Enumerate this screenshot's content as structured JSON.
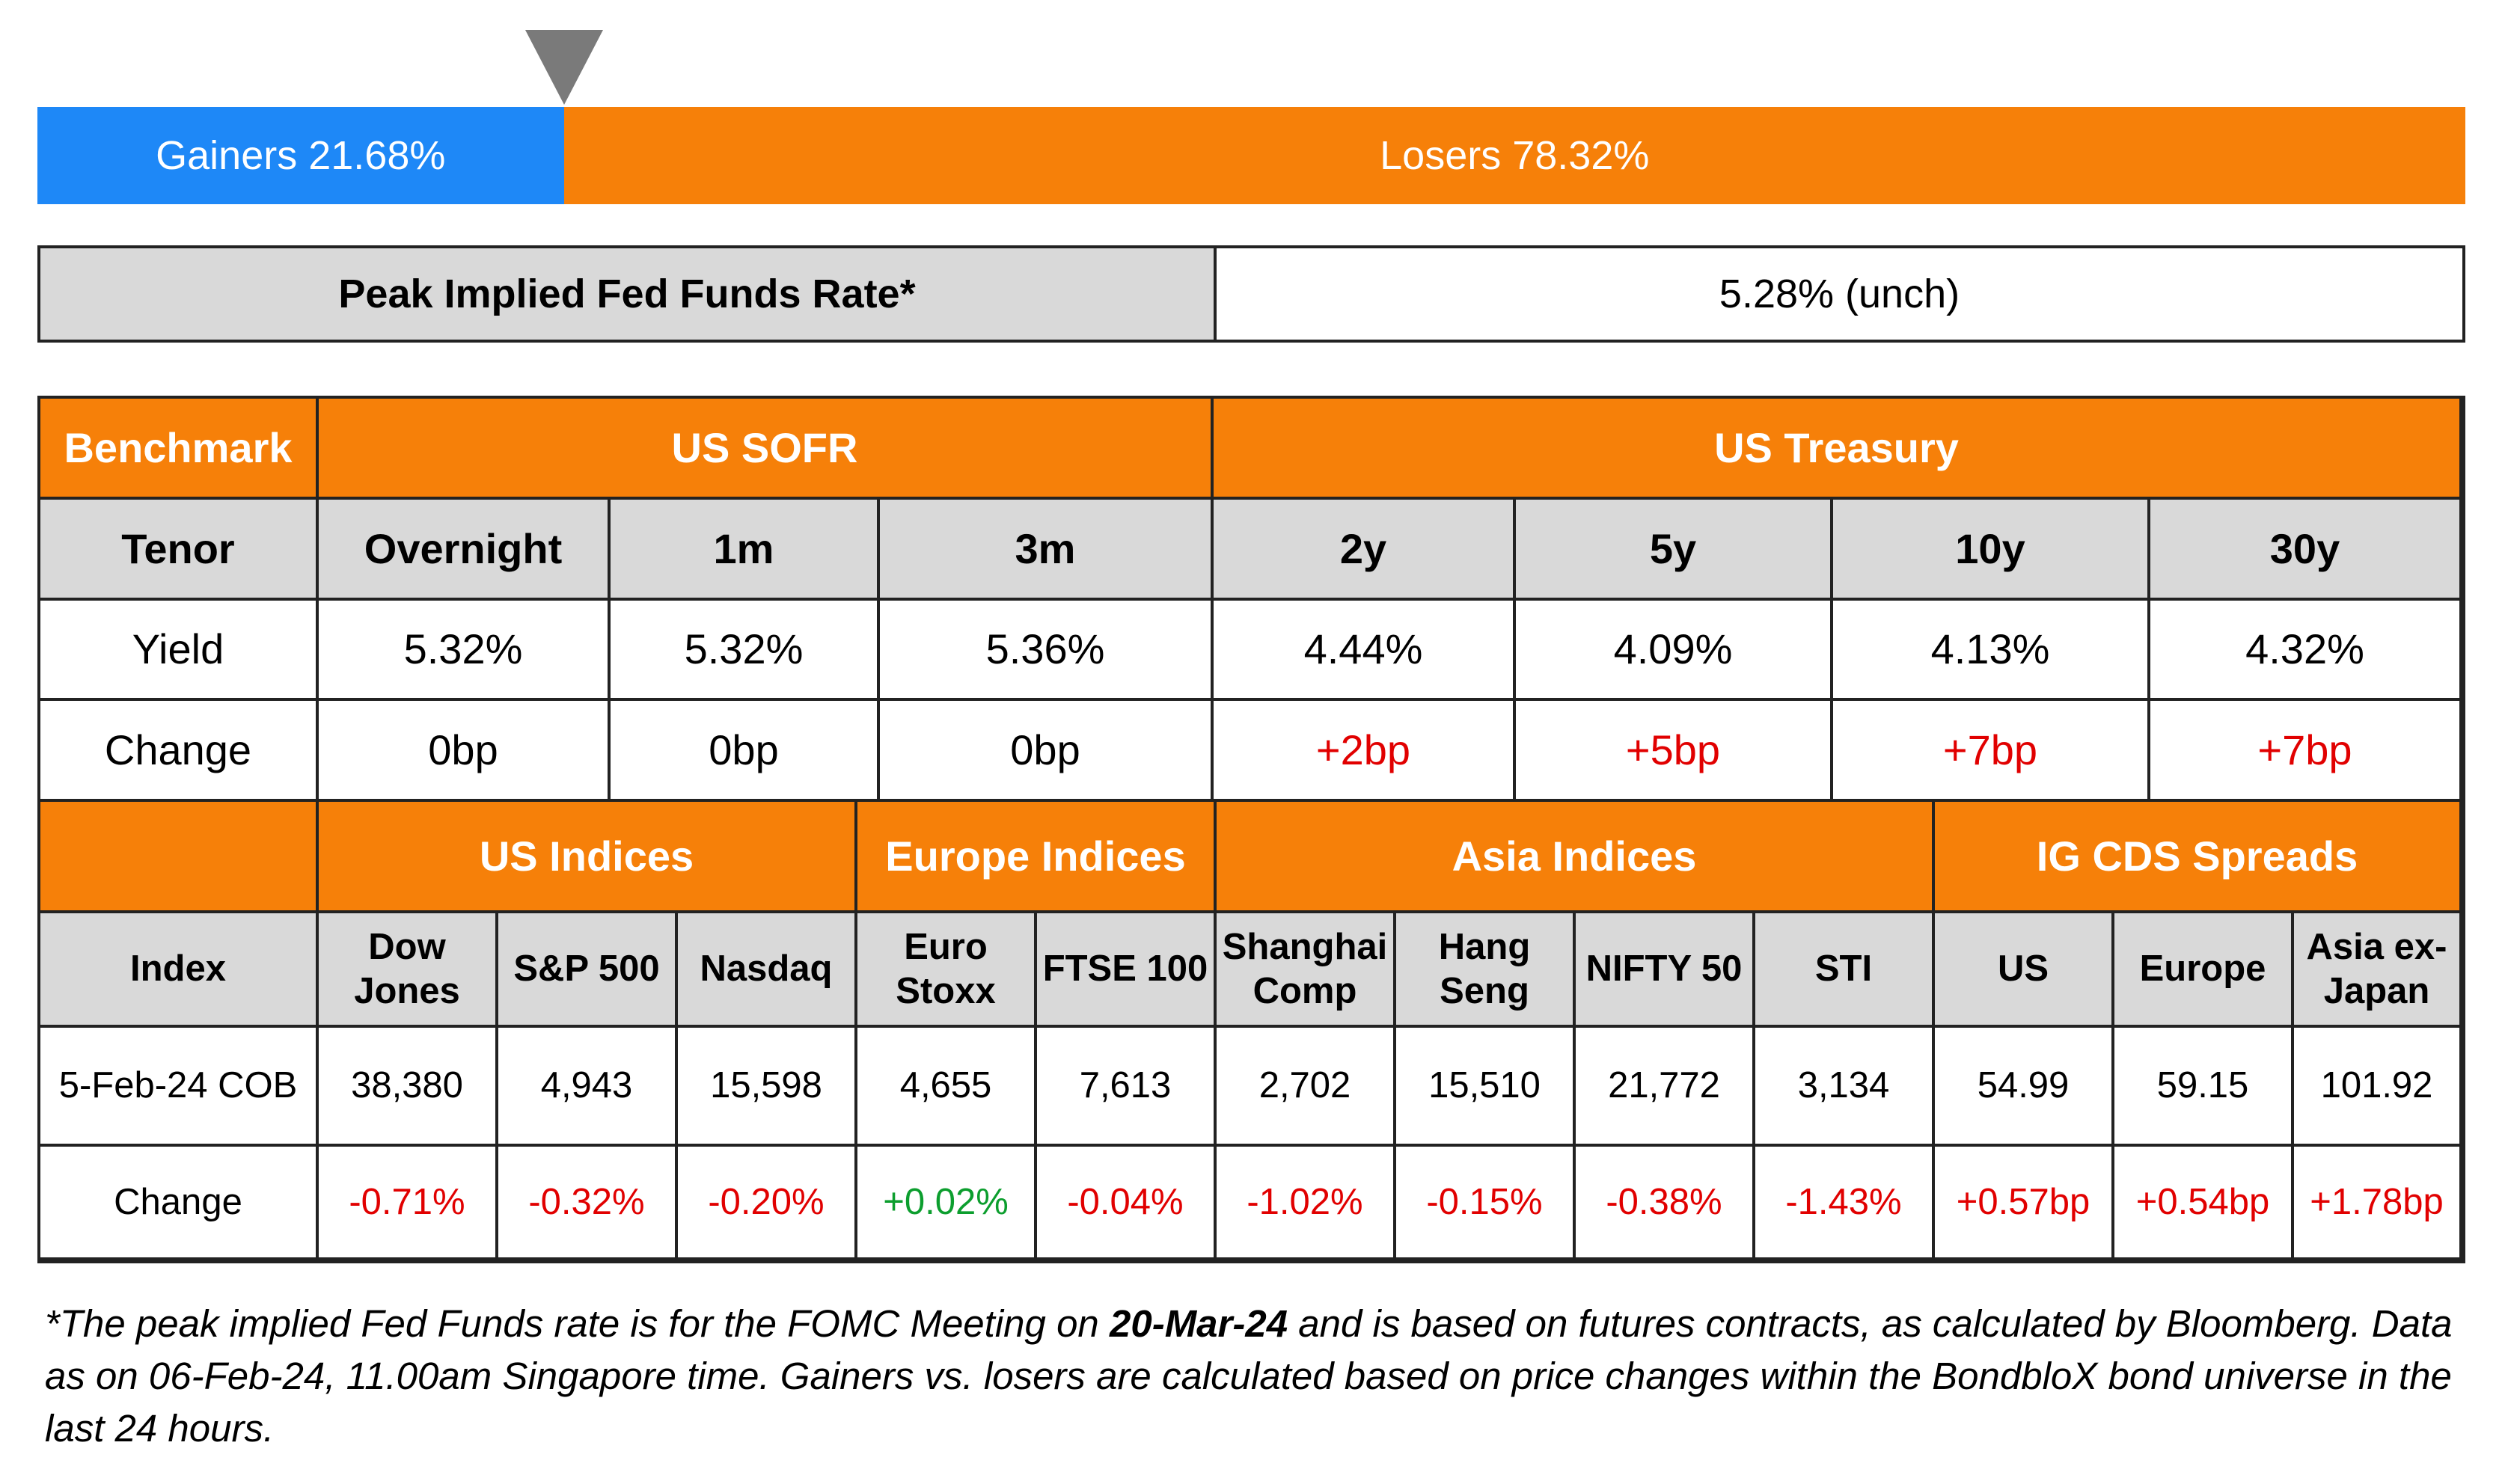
{
  "gainers_losers": {
    "gainers_label": "Gainers 21.68%",
    "losers_label": "Losers 78.32%",
    "gainers_pct": 21.68,
    "losers_pct": 78.32,
    "gainers_color": "#1e88f7",
    "losers_color": "#f68009"
  },
  "peak_rate": {
    "label": "Peak Implied Fed Funds Rate*",
    "value": "5.28% (unch)"
  },
  "rates": {
    "benchmark_label": "Benchmark",
    "sofr_label": "US SOFR",
    "treasury_label": "US Treasury",
    "tenor_label": "Tenor",
    "yield_label": "Yield",
    "change_label": "Change",
    "columns": [
      {
        "tenor": "Overnight",
        "yield": "5.32%",
        "change": "0bp"
      },
      {
        "tenor": "1m",
        "yield": "5.32%",
        "change": "0bp"
      },
      {
        "tenor": "3m",
        "yield": "5.36%",
        "change": "0bp"
      },
      {
        "tenor": "2y",
        "yield": "4.44%",
        "change": "+2bp"
      },
      {
        "tenor": "5y",
        "yield": "4.09%",
        "change": "+5bp"
      },
      {
        "tenor": "10y",
        "yield": "4.13%",
        "change": "+7bp"
      },
      {
        "tenor": "30y",
        "yield": "4.32%",
        "change": "+7bp"
      }
    ]
  },
  "indices": {
    "groups": [
      "US Indices",
      "Europe Indices",
      "Asia Indices",
      "IG CDS Spreads"
    ],
    "index_label": "Index",
    "date_label": "5-Feb-24 COB",
    "change_label": "Change",
    "columns": [
      {
        "line1": "Dow",
        "line2": "Jones",
        "value": "38,380",
        "change": "-0.71%"
      },
      {
        "line1": "S&P 500",
        "line2": "",
        "value": "4,943",
        "change": "-0.32%"
      },
      {
        "line1": "Nasdaq",
        "line2": "",
        "value": "15,598",
        "change": "-0.20%"
      },
      {
        "line1": "Euro",
        "line2": "Stoxx",
        "value": "4,655",
        "change": "+0.02%"
      },
      {
        "line1": "FTSE 100",
        "line2": "",
        "value": "7,613",
        "change": "-0.04%"
      },
      {
        "line1": "Shanghai",
        "line2": "Comp",
        "value": "2,702",
        "change": "-1.02%"
      },
      {
        "line1": "Hang",
        "line2": "Seng",
        "value": "15,510",
        "change": "-0.15%"
      },
      {
        "line1": "NIFTY 50",
        "line2": "",
        "value": "21,772",
        "change": "-0.38%"
      },
      {
        "line1": "STI",
        "line2": "",
        "value": "3,134",
        "change": "-1.43%"
      },
      {
        "line1": "US",
        "line2": "",
        "value": "54.99",
        "change": "+0.57bp"
      },
      {
        "line1": "Europe",
        "line2": "",
        "value": "59.15",
        "change": "+0.54bp"
      },
      {
        "line1": "Asia ex-",
        "line2": "Japan",
        "value": "101.92",
        "change": "+1.78bp"
      }
    ]
  },
  "colors": {
    "header_orange": "#f68009",
    "header_grey": "#d9d9d9",
    "negative_red": "#e10000",
    "positive_green": "#0c9e2e"
  },
  "footnote": {
    "part1": "*The peak implied Fed Funds rate is for the FOMC Meeting on ",
    "bold": "20-Mar-24",
    "part2": " and is based on futures contracts, as calculated by Bloomberg. Data as on 06-Feb-24, 11.00am Singapore time. Gainers vs. losers are calculated based on price changes within the BondbloX bond universe in the last 24 hours."
  }
}
